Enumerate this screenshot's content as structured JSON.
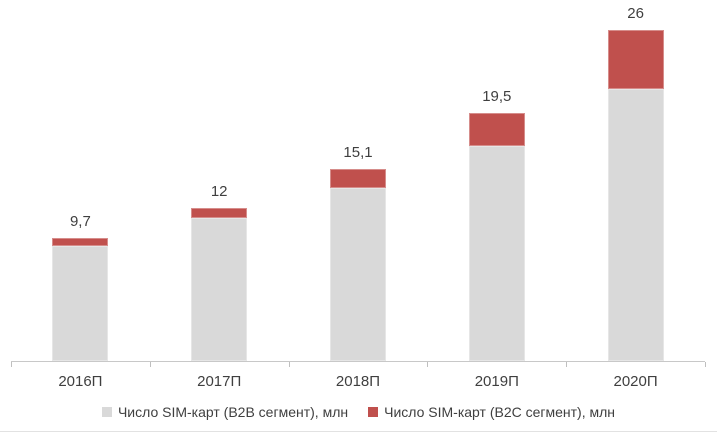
{
  "chart_data": {
    "type": "bar",
    "subtype": "stacked-column",
    "categories": [
      "2016П",
      "2017П",
      "2018П",
      "2019П",
      "2020П"
    ],
    "series": [
      {
        "name": "Число SIM-карт (B2B сегмент), млн",
        "color": "#d9d9d9",
        "values": [
          9.0,
          11.2,
          13.6,
          16.9,
          21.4
        ]
      },
      {
        "name": "Число SIM-карт (B2C сегмент), млн",
        "color": "#c0504d",
        "values": [
          0.7,
          0.8,
          1.5,
          2.6,
          4.6
        ]
      }
    ],
    "totals": [
      9.7,
      12,
      15.1,
      19.5,
      26
    ],
    "totals_labels": [
      "9,7",
      "12",
      "15,1",
      "19,5",
      "26"
    ],
    "title": "",
    "xlabel": "",
    "ylabel": "",
    "ylim": [
      0,
      28
    ],
    "grid": false,
    "value_axis_visible": false,
    "legend_position": "bottom"
  },
  "colors": {
    "b2b_gray": "#d9d9d9",
    "b2c_red": "#c0504d",
    "axis_line": "#c8c8c8",
    "tick": "#bfbfbf",
    "text": "#3f3f3f",
    "background": "#ffffff"
  },
  "legend": {
    "items": [
      {
        "label": "Число SIM-карт (B2B сегмент), млн",
        "color": "#d9d9d9"
      },
      {
        "label": "Число SIM-карт (B2C сегмент), млн",
        "color": "#c0504d"
      }
    ]
  }
}
